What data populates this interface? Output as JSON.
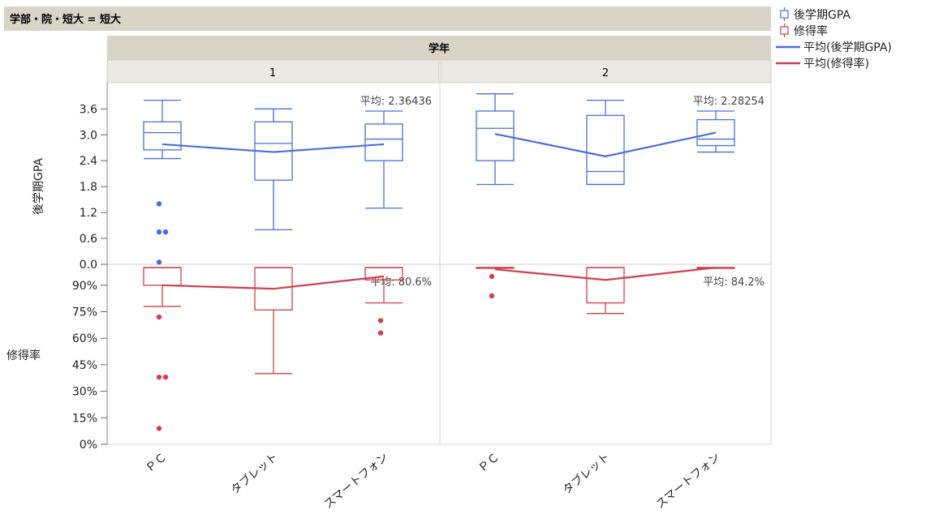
{
  "header": {
    "filter_title": "学部・院・短大 = 短大"
  },
  "chart_data": {
    "type": "boxplot",
    "group_header": "学年",
    "panels": [
      {
        "label": "1",
        "categories": [
          "ＰＣ",
          "タブレット",
          "スマートフォン"
        ],
        "gpa": {
          "boxes": [
            {
              "min": 2.45,
              "q1": 2.65,
              "median": 3.05,
              "q3": 3.3,
              "max": 3.8,
              "outliers": [
                1.4,
                0.75,
                0.75,
                0.05
              ]
            },
            {
              "min": 0.8,
              "q1": 1.95,
              "median": 2.8,
              "q3": 3.3,
              "max": 3.6,
              "outliers": []
            },
            {
              "min": 1.3,
              "q1": 2.4,
              "median": 2.9,
              "q3": 3.25,
              "max": 3.55,
              "outliers": []
            }
          ],
          "means": [
            2.78,
            2.6,
            2.78
          ],
          "mean_label": "平均: 2.36436"
        },
        "rate": {
          "boxes": [
            {
              "min": 0.78,
              "q1": 0.9,
              "median": 1.0,
              "q3": 1.0,
              "max": 1.0,
              "outliers": [
                0.72,
                0.38,
                0.38,
                0.09
              ]
            },
            {
              "min": 0.4,
              "q1": 0.76,
              "median": 1.0,
              "q3": 1.0,
              "max": 1.0,
              "outliers": []
            },
            {
              "min": 0.8,
              "q1": 0.93,
              "median": 1.0,
              "q3": 1.0,
              "max": 1.0,
              "outliers": [
                0.7,
                0.63
              ]
            }
          ],
          "means": [
            0.9,
            0.88,
            0.95
          ],
          "mean_label": "平均: 80.6%"
        }
      },
      {
        "label": "2",
        "categories": [
          "ＰＣ",
          "タブレット",
          "スマートフォン"
        ],
        "gpa": {
          "boxes": [
            {
              "min": 1.85,
              "q1": 2.4,
              "median": 3.15,
              "q3": 3.55,
              "max": 3.95,
              "outliers": []
            },
            {
              "min": 1.85,
              "q1": 1.85,
              "median": 2.15,
              "q3": 3.45,
              "max": 3.8,
              "outliers": []
            },
            {
              "min": 2.6,
              "q1": 2.75,
              "median": 2.9,
              "q3": 3.35,
              "max": 3.55,
              "outliers": []
            }
          ],
          "means": [
            3.02,
            2.5,
            3.05
          ],
          "mean_label": "平均: 2.28254"
        },
        "rate": {
          "boxes": [
            {
              "min": 1.0,
              "q1": 1.0,
              "median": 1.0,
              "q3": 1.0,
              "max": 1.0,
              "outliers": [
                0.95,
                0.84
              ]
            },
            {
              "min": 0.74,
              "q1": 0.8,
              "median": 1.0,
              "q3": 1.0,
              "max": 1.0,
              "outliers": []
            },
            {
              "min": 1.0,
              "q1": 1.0,
              "median": 1.0,
              "q3": 1.0,
              "max": 1.0,
              "outliers": []
            }
          ],
          "means": [
            0.99,
            0.93,
            1.0
          ],
          "mean_label": "平均: 84.2%"
        }
      }
    ],
    "gpa_axis": {
      "label": "後学期GPA",
      "ticks": [
        "0.0",
        "0.6",
        "1.2",
        "1.8",
        "2.4",
        "3.0",
        "3.6"
      ],
      "tick_values": [
        0,
        0.6,
        1.2,
        1.8,
        2.4,
        3.0,
        3.6
      ],
      "ylim": [
        0,
        4.0
      ]
    },
    "rate_axis": {
      "label": "修得率",
      "ticks": [
        "0%",
        "15%",
        "30%",
        "45%",
        "60%",
        "75%",
        "90%"
      ],
      "tick_values": [
        0,
        0.15,
        0.3,
        0.45,
        0.6,
        0.75,
        0.9
      ],
      "ylim": [
        0,
        1.0
      ]
    },
    "legend": [
      {
        "kind": "box",
        "label": "後学期GPA",
        "color": "#4a6fdc"
      },
      {
        "kind": "box",
        "label": "修得率",
        "color": "#d0404f"
      },
      {
        "kind": "line",
        "label": "平均(後学期GPA)",
        "color": "#4a6fdc"
      },
      {
        "kind": "line",
        "label": "平均(修得率)",
        "color": "#d0404f"
      }
    ],
    "colors": {
      "gpa": "#4a6fdc",
      "rate": "#d0404f",
      "header_bg": "#d8d4c8",
      "subheader_bg": "#ebe9e2"
    }
  }
}
